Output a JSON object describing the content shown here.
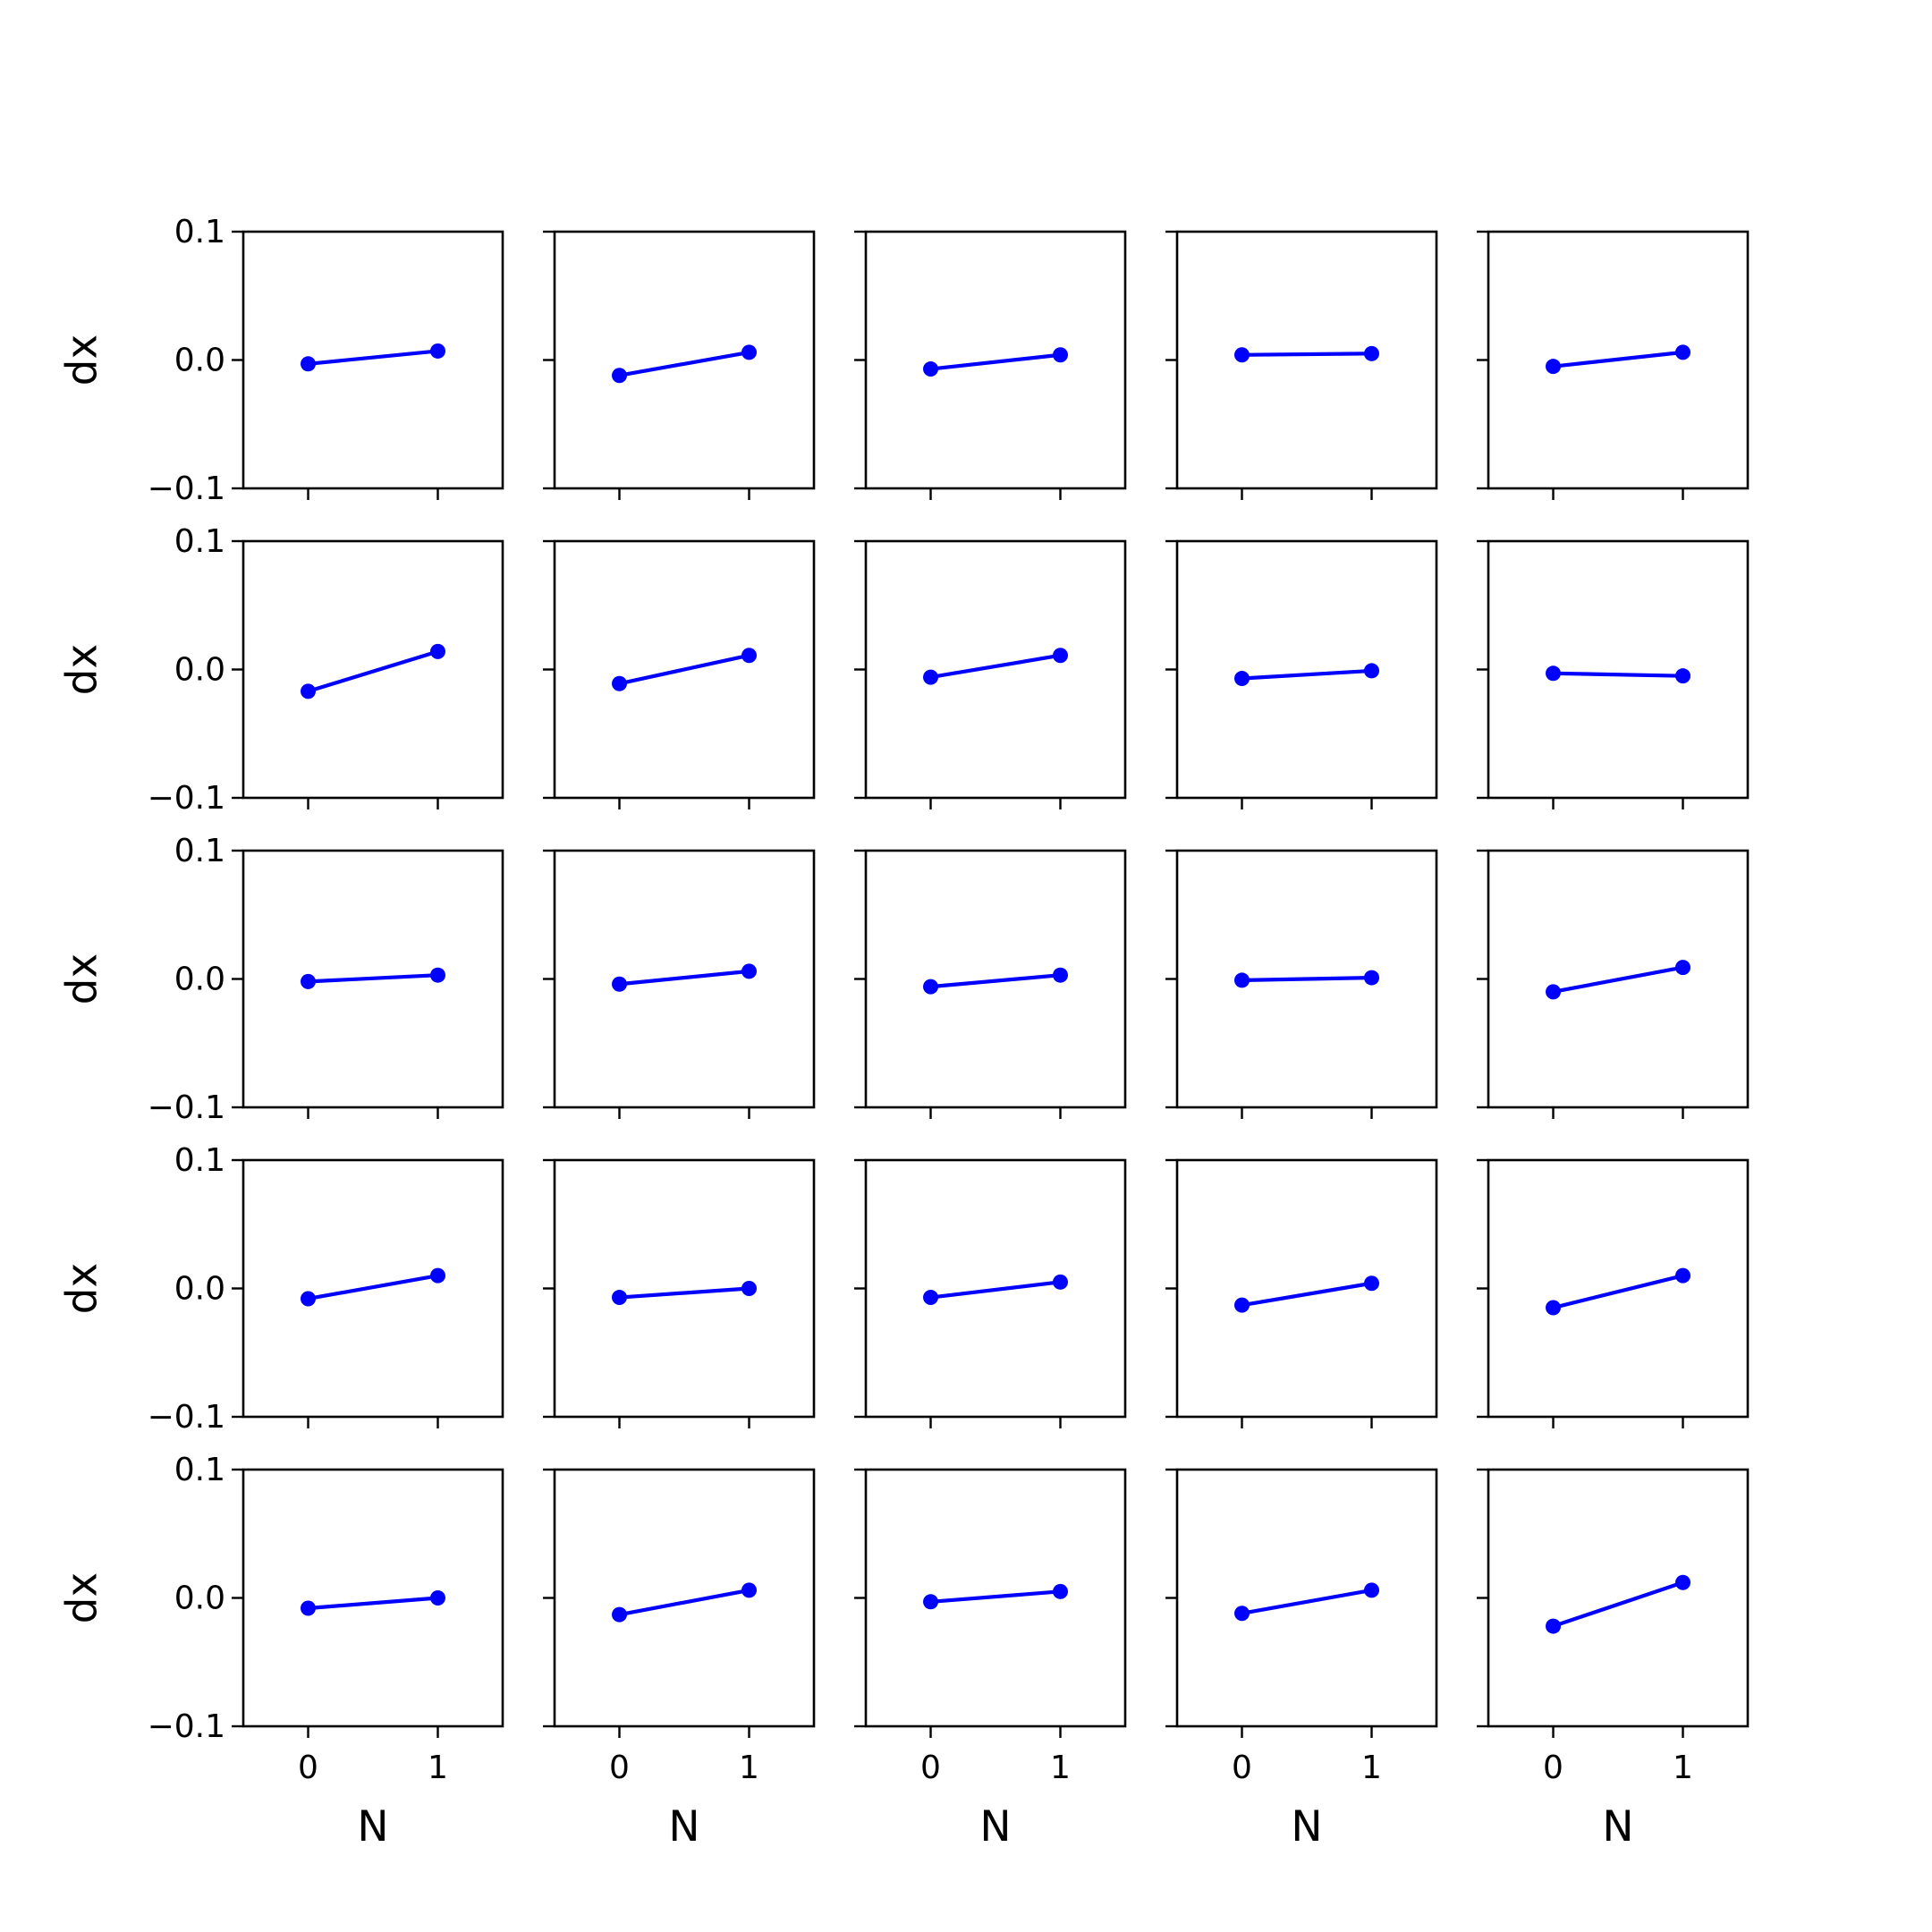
{
  "chart_data": {
    "type": "line",
    "layout": {
      "rows": 5,
      "cols": 5
    },
    "x_ticks": [
      "0",
      "1"
    ],
    "y_ticks": [
      "0.1",
      "0.0",
      "−0.1"
    ],
    "x_values": [
      0,
      1
    ],
    "xlim": [
      -0.5,
      1.5
    ],
    "ylim": [
      -0.1,
      0.1
    ],
    "xlabel": "N",
    "ylabel": "dx",
    "grid": false,
    "line_color": "#0000ff",
    "panels": [
      {
        "y": [
          -0.003,
          0.007
        ]
      },
      {
        "y": [
          -0.012,
          0.006
        ]
      },
      {
        "y": [
          -0.007,
          0.004
        ]
      },
      {
        "y": [
          0.004,
          0.005
        ]
      },
      {
        "y": [
          -0.005,
          0.006
        ]
      },
      {
        "y": [
          -0.017,
          0.014
        ]
      },
      {
        "y": [
          -0.011,
          0.011
        ]
      },
      {
        "y": [
          -0.006,
          0.011
        ]
      },
      {
        "y": [
          -0.007,
          -0.001
        ]
      },
      {
        "y": [
          -0.003,
          -0.005
        ]
      },
      {
        "y": [
          -0.002,
          0.003
        ]
      },
      {
        "y": [
          -0.004,
          0.006
        ]
      },
      {
        "y": [
          -0.006,
          0.003
        ]
      },
      {
        "y": [
          -0.001,
          0.001
        ]
      },
      {
        "y": [
          -0.01,
          0.009
        ]
      },
      {
        "y": [
          -0.008,
          0.01
        ]
      },
      {
        "y": [
          -0.007,
          0.0
        ]
      },
      {
        "y": [
          -0.007,
          0.005
        ]
      },
      {
        "y": [
          -0.013,
          0.004
        ]
      },
      {
        "y": [
          -0.015,
          0.01
        ]
      },
      {
        "y": [
          -0.008,
          0.0
        ]
      },
      {
        "y": [
          -0.013,
          0.006
        ]
      },
      {
        "y": [
          -0.003,
          0.005
        ]
      },
      {
        "y": [
          -0.012,
          0.006
        ]
      },
      {
        "y": [
          -0.022,
          0.012
        ]
      }
    ]
  }
}
